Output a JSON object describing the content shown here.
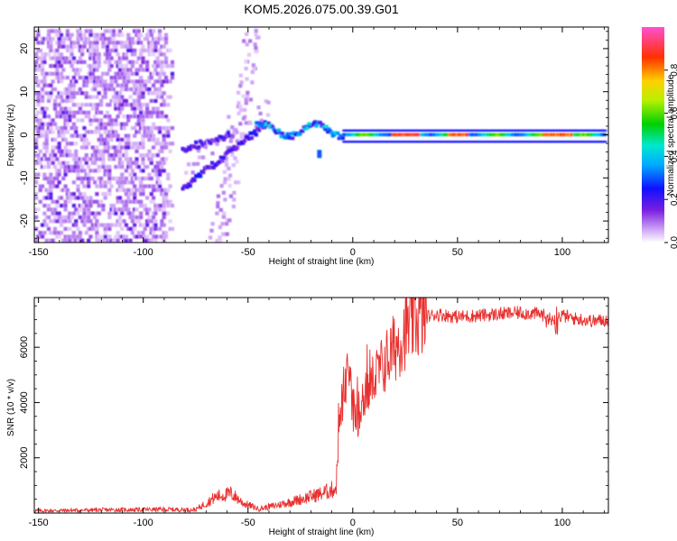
{
  "title": "KOM5.2026.075.00.39.G01",
  "chart_data": [
    {
      "type": "heatmap",
      "name": "spectrogram",
      "xlabel": "Height of straight line (km)",
      "ylabel": "Frequency (Hz)",
      "xlim": [
        -152,
        122
      ],
      "ylim": [
        -25,
        25
      ],
      "xticks": [
        -150,
        -100,
        -50,
        0,
        50,
        100
      ],
      "yticks": [
        -20,
        -10,
        0,
        10,
        20
      ],
      "colorbar": {
        "label": "Normalized spectral amplitude",
        "range": [
          0,
          1
        ],
        "ticks": [
          0.0,
          0.2,
          0.4,
          0.6,
          0.8
        ],
        "tick_labels": [
          "0.0",
          "0.2",
          "0.4",
          "0.6",
          "0.8"
        ]
      },
      "features": [
        {
          "desc": "noise field",
          "x": [
            -152,
            -88
          ],
          "amp": 0.15
        },
        {
          "desc": "diagonal stripe",
          "x": [
            -60,
            -40
          ],
          "amp": 0.08
        },
        {
          "desc": "rising branch",
          "x": [
            -82,
            -42
          ],
          "f": [
            -12,
            3
          ],
          "amp": 0.2
        },
        {
          "desc": "near-zero tone",
          "x": [
            -5,
            120
          ],
          "f": -0.5,
          "amp": 0.7
        }
      ]
    },
    {
      "type": "line",
      "name": "snr",
      "xlabel": "Height of straight line (km)",
      "ylabel": "SNR (10 * v/v)",
      "xlim": [
        -152,
        122
      ],
      "ylim": [
        0,
        7800
      ],
      "xticks": [
        -150,
        -100,
        -50,
        0,
        50,
        100
      ],
      "yticks": [
        2000,
        4000,
        6000
      ],
      "color": "#e8302e",
      "series": [
        {
          "name": "SNR",
          "x": [
            -152,
            -120,
            -90,
            -75,
            -65,
            -58,
            -52,
            -45,
            -35,
            -25,
            -15,
            -8,
            -6,
            -4,
            -2,
            0,
            2,
            5,
            10,
            15,
            20,
            25,
            30,
            35,
            40,
            45,
            50,
            60,
            70,
            80,
            90,
            95,
            100,
            105,
            110,
            115,
            122
          ],
          "y": [
            80,
            110,
            130,
            120,
            600,
            700,
            350,
            150,
            300,
            500,
            700,
            900,
            3500,
            4600,
            4800,
            3800,
            3400,
            4200,
            4800,
            5400,
            6000,
            6600,
            7000,
            7100,
            7200,
            7150,
            7100,
            7150,
            7200,
            7250,
            7200,
            7000,
            7150,
            7050,
            7000,
            6950,
            7000
          ]
        }
      ]
    }
  ]
}
